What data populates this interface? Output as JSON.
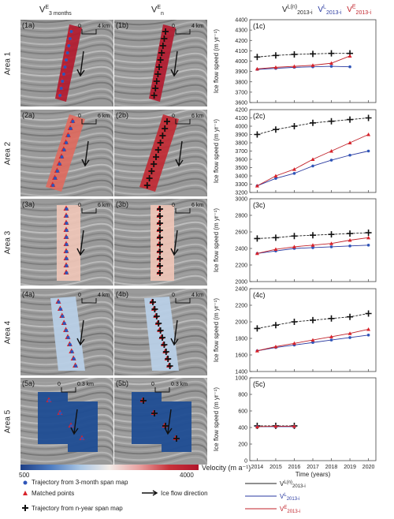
{
  "columns": {
    "col1_header": {
      "main": "V",
      "sup": "E",
      "sub": "3 months"
    },
    "col2_header": {
      "main": "V",
      "sup": "E",
      "sub": "n"
    }
  },
  "areas": [
    {
      "label": "Area 1",
      "panel_a": "(1a)",
      "panel_b": "(1b)",
      "scale": "4 km"
    },
    {
      "label": "Area 2",
      "panel_a": "(2a)",
      "panel_b": "(2b)",
      "scale": "6 km"
    },
    {
      "label": "Area 3",
      "panel_a": "(3a)",
      "panel_b": "(3b)",
      "scale": "6 km"
    },
    {
      "label": "Area 4",
      "panel_a": "(4a)",
      "panel_b": "(4b)",
      "scale": "4 km"
    },
    {
      "label": "Area 5",
      "panel_a": "(5a)",
      "panel_b": "(5b)",
      "scale": "0.3 km"
    }
  ],
  "scale_zero": "0",
  "colorbar": {
    "min": "500",
    "max": "4000",
    "label": "Velocity (m a⁻¹)",
    "colors": [
      "#1e3f86",
      "#4c7bc0",
      "#a9c6e4",
      "#f3ece8",
      "#e8a1a0",
      "#c8333b",
      "#b1152b"
    ]
  },
  "legend_left": {
    "blue_dot": "Trajectory from 3-month span map",
    "red_triangle": "Matched points",
    "cross": "Trajectory from n-year span map",
    "arrow": "Ice flow direction"
  },
  "chart_header": {
    "s1": {
      "main": "V",
      "sup": "L(n)",
      "sub": "2013-i",
      "color": "#222222"
    },
    "s2": {
      "main": "V",
      "sup": "L",
      "sub": "2013-i",
      "color": "#2a3aa0"
    },
    "s3": {
      "main": "V",
      "sup": "E",
      "sub": "2013-i",
      "color": "#c0222a"
    }
  },
  "chart_data": [
    {
      "type": "line",
      "panel": "(1c)",
      "ylabel": "Ice flow speed (m yr⁻¹)",
      "ylim": [
        3600,
        4400
      ],
      "yticks": [
        3600,
        3700,
        3800,
        3900,
        4000,
        4100,
        4200,
        4300,
        4400
      ],
      "series": [
        {
          "name": "VL(n) 2013-i",
          "x": [
            2014,
            2015,
            2016,
            2017,
            2018,
            2019
          ],
          "values": [
            4040,
            4055,
            4065,
            4070,
            4075,
            4075
          ]
        },
        {
          "name": "VL 2013-i",
          "x": [
            2014,
            2015,
            2016,
            2017,
            2018,
            2019
          ],
          "values": [
            3920,
            3930,
            3940,
            3945,
            3950,
            3945
          ]
        },
        {
          "name": "VE 2013-i",
          "x": [
            2014,
            2015,
            2016,
            2017,
            2018,
            2019
          ],
          "values": [
            3925,
            3940,
            3950,
            3960,
            3980,
            4050
          ]
        }
      ]
    },
    {
      "type": "line",
      "panel": "(2c)",
      "ylabel": "Ice flow speed (m yr⁻¹)",
      "ylim": [
        3200,
        4200
      ],
      "yticks": [
        3200,
        3300,
        3400,
        3500,
        3600,
        3700,
        3800,
        3900,
        4000,
        4100,
        4200
      ],
      "series": [
        {
          "name": "VL(n) 2013-i",
          "x": [
            2014,
            2015,
            2016,
            2017,
            2018,
            2019,
            2020
          ],
          "values": [
            3900,
            3960,
            4000,
            4040,
            4060,
            4080,
            4100
          ]
        },
        {
          "name": "VL 2013-i",
          "x": [
            2014,
            2015,
            2016,
            2017,
            2018,
            2019,
            2020
          ],
          "values": [
            3280,
            3370,
            3430,
            3520,
            3590,
            3650,
            3700
          ]
        },
        {
          "name": "VE 2013-i",
          "x": [
            2014,
            2015,
            2016,
            2017,
            2018,
            2019,
            2020
          ],
          "values": [
            3280,
            3400,
            3480,
            3600,
            3700,
            3800,
            3900
          ]
        }
      ]
    },
    {
      "type": "line",
      "panel": "(3c)",
      "ylabel": "Ice flow speed (m yr⁻¹)",
      "ylim": [
        2000,
        3000
      ],
      "yticks": [
        2000,
        2200,
        2400,
        2600,
        2800,
        3000
      ],
      "series": [
        {
          "name": "VL(n) 2013-i",
          "x": [
            2014,
            2015,
            2016,
            2017,
            2018,
            2019,
            2020
          ],
          "values": [
            2520,
            2530,
            2550,
            2560,
            2570,
            2580,
            2590
          ]
        },
        {
          "name": "VL 2013-i",
          "x": [
            2014,
            2015,
            2016,
            2017,
            2018,
            2019,
            2020
          ],
          "values": [
            2340,
            2370,
            2400,
            2410,
            2420,
            2430,
            2440
          ]
        },
        {
          "name": "VE 2013-i",
          "x": [
            2014,
            2015,
            2016,
            2017,
            2018,
            2019,
            2020
          ],
          "values": [
            2340,
            2390,
            2420,
            2440,
            2460,
            2500,
            2530
          ]
        }
      ]
    },
    {
      "type": "line",
      "panel": "(4c)",
      "ylabel": "Ice flow speed (m yr⁻¹)",
      "ylim": [
        1400,
        2400
      ],
      "yticks": [
        1400,
        1600,
        1800,
        2000,
        2200,
        2400
      ],
      "series": [
        {
          "name": "VL(n) 2013-i",
          "x": [
            2014,
            2015,
            2016,
            2017,
            2018,
            2019,
            2020
          ],
          "values": [
            1920,
            1960,
            2000,
            2020,
            2040,
            2060,
            2100
          ]
        },
        {
          "name": "VL 2013-i",
          "x": [
            2014,
            2015,
            2016,
            2017,
            2018,
            2019,
            2020
          ],
          "values": [
            1650,
            1690,
            1720,
            1750,
            1780,
            1810,
            1840
          ]
        },
        {
          "name": "VE 2013-i",
          "x": [
            2014,
            2015,
            2016,
            2017,
            2018,
            2019,
            2020
          ],
          "values": [
            1650,
            1700,
            1740,
            1780,
            1820,
            1860,
            1910
          ]
        }
      ]
    },
    {
      "type": "line",
      "panel": "(5c)",
      "ylabel": "Ice flow speed (m yr⁻¹)",
      "ylim": [
        0,
        1000
      ],
      "yticks": [
        0,
        200,
        400,
        600,
        800,
        1000
      ],
      "xlabel": "Time (years)",
      "xticks": [
        2014,
        2015,
        2016,
        2017,
        2018,
        2019,
        2020
      ],
      "series": [
        {
          "name": "VL(n) 2013-i",
          "x": [
            2014,
            2015,
            2016
          ],
          "values": [
            420,
            420,
            420
          ]
        },
        {
          "name": "VL 2013-i",
          "x": [
            2014,
            2015,
            2016
          ],
          "values": [
            410,
            410,
            410
          ]
        },
        {
          "name": "VE 2013-i",
          "x": [
            2014,
            2015,
            2016
          ],
          "values": [
            410,
            415,
            415
          ]
        }
      ]
    }
  ],
  "chart_legend": [
    {
      "main": "V",
      "sup": "L(n)",
      "sub": "2013-i",
      "color": "#222222"
    },
    {
      "main": "V",
      "sup": "L",
      "sub": "2013-i",
      "color": "#2a3aa0"
    },
    {
      "main": "V",
      "sup": "E",
      "sub": "2013-i",
      "color": "#c0222a"
    }
  ]
}
